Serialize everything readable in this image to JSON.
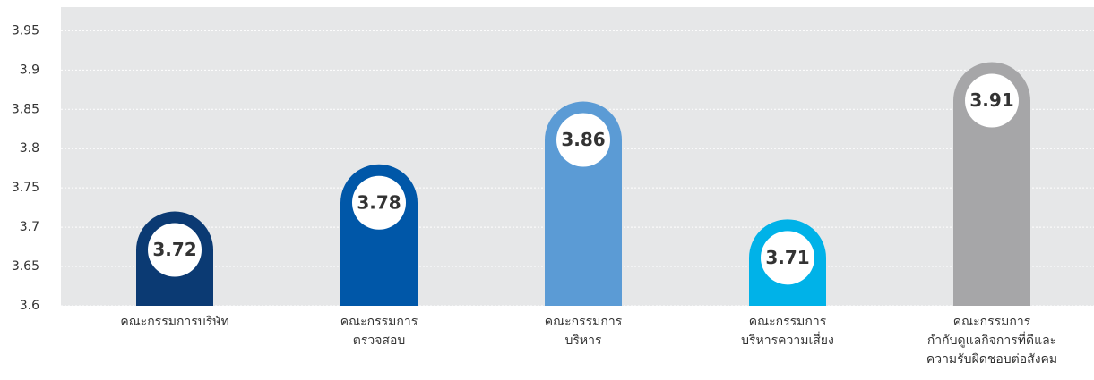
{
  "chart_data": {
    "type": "bar",
    "categories": [
      "คณะกรรมการบริษัท",
      "คณะกรรมการ\nตรวจสอบ",
      "คณะกรรมการ\nบริหาร",
      "คณะกรรมการ\nบริหารความเสี่ยง",
      "คณะกรรมการ\nกำกับดูแลกิจการที่ดีและ\nความรับผิดชอบต่อสังคม"
    ],
    "values": [
      3.72,
      3.78,
      3.86,
      3.71,
      3.91
    ],
    "colors": [
      "#0b3a73",
      "#0057a8",
      "#5b9bd5",
      "#00b2e8",
      "#a6a6a8"
    ],
    "ylim": [
      3.6,
      3.98
    ],
    "yticks": [
      3.6,
      3.65,
      3.7,
      3.75,
      3.8,
      3.85,
      3.9,
      3.95
    ],
    "grid": true
  }
}
